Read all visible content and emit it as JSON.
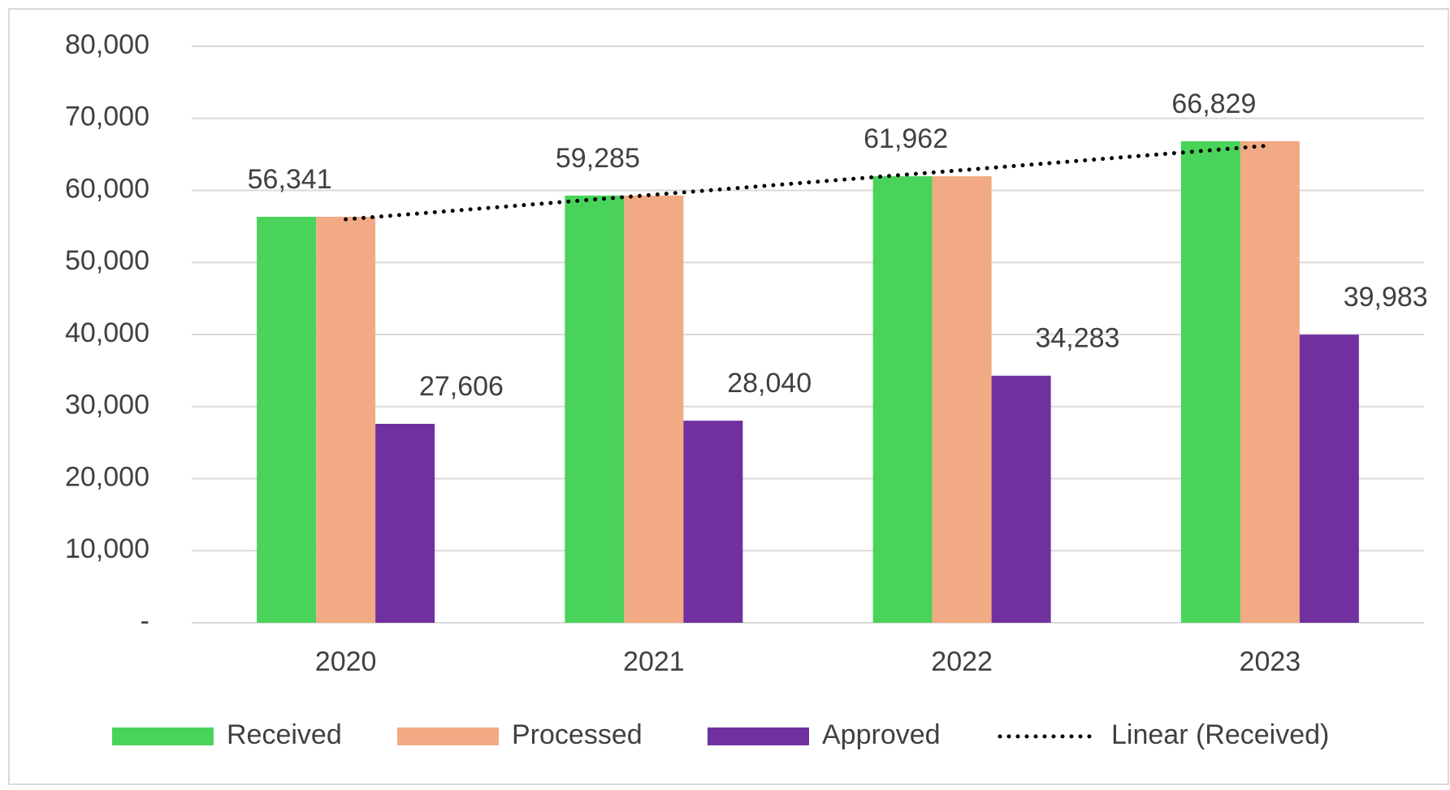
{
  "chart_data": {
    "type": "bar",
    "categories": [
      "2020",
      "2021",
      "2022",
      "2023"
    ],
    "series": [
      {
        "name": "Received",
        "color": "#49d35b",
        "values": [
          56341,
          59285,
          61962,
          66829
        ],
        "value_labels": [
          "56,341",
          "59,285",
          "61,962",
          "66,829"
        ],
        "trendline": {
          "name": "Linear (Received)",
          "fit": "linear",
          "color": "#000000"
        }
      },
      {
        "name": "Processed",
        "color": "#f2aa84",
        "values": [
          56341,
          59285,
          61962,
          66829
        ]
      },
      {
        "name": "Approved",
        "color": "#7030a0",
        "values": [
          27606,
          28040,
          34283,
          39983
        ],
        "value_labels": [
          "27,606",
          "28,040",
          "34,283",
          "39,983"
        ]
      }
    ],
    "ylim": [
      0,
      80000
    ],
    "yticks": [
      {
        "value": 0,
        "label": "-"
      },
      {
        "value": 10000,
        "label": "10,000"
      },
      {
        "value": 20000,
        "label": "20,000"
      },
      {
        "value": 30000,
        "label": "30,000"
      },
      {
        "value": 40000,
        "label": "40,000"
      },
      {
        "value": 50000,
        "label": "50,000"
      },
      {
        "value": 60000,
        "label": "60,000"
      },
      {
        "value": 70000,
        "label": "70,000"
      },
      {
        "value": 80000,
        "label": "80,000"
      }
    ],
    "grid": true,
    "legend": "bottom"
  }
}
